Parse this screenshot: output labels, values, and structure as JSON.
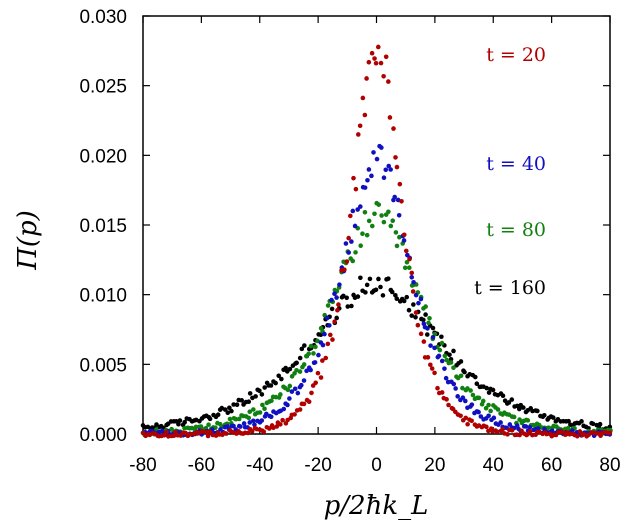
{
  "chart_data": {
    "type": "scatter",
    "title": "",
    "xlabel": "p/2ħk_L",
    "ylabel": "Π(p)",
    "xlim": [
      -80,
      80
    ],
    "ylim": [
      0,
      0.03
    ],
    "x_ticks": [
      "-80",
      "-60",
      "-40",
      "-20",
      "0",
      "20",
      "40",
      "60",
      "80"
    ],
    "y_ticks": [
      "0.000",
      "0.005",
      "0.010",
      "0.015",
      "0.020",
      "0.025",
      "0.030"
    ],
    "grid": false,
    "legend_position": "right",
    "series": [
      {
        "name": "t = 20",
        "color": "#b00000",
        "model": {
          "peak": 0.0278,
          "width": 7.6
        }
      },
      {
        "name": "t = 40",
        "color": "#1010c0",
        "model": {
          "peak": 0.0196,
          "width": 10.8
        }
      },
      {
        "name": "t = 80",
        "color": "#108010",
        "model": {
          "peak": 0.0155,
          "width": 14.0
        }
      },
      {
        "name": "t = 160",
        "color": "#000000",
        "model": {
          "peak": 0.0108,
          "width": 20.5
        }
      }
    ]
  }
}
